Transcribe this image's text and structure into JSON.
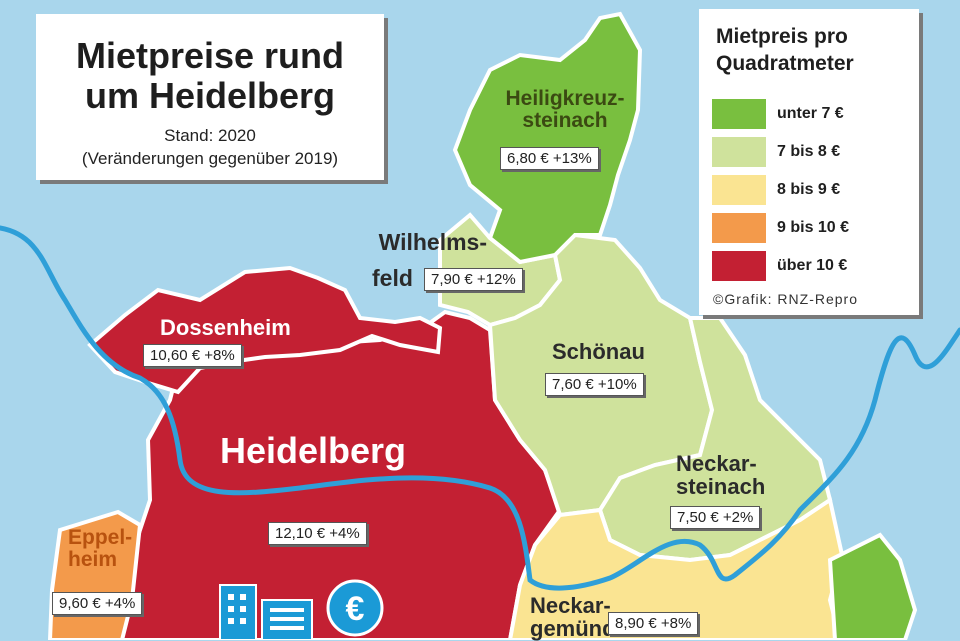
{
  "title": {
    "line1": "Mietpreise rund",
    "line2": "um Heidelberg",
    "stand": "Stand: 2020",
    "note": "(Veränderungen gegenüber 2019)"
  },
  "legend": {
    "title_line1": "Mietpreis pro",
    "title_line2": "Quadratmeter",
    "items": [
      {
        "label": "unter 7 €",
        "color": "#79bf3f"
      },
      {
        "label": "7 bis 8 €",
        "color": "#cfe29c"
      },
      {
        "label": "8 bis 9 €",
        "color": "#fae492"
      },
      {
        "label": "9 bis 10 €",
        "color": "#f39a4b"
      },
      {
        "label": "über 10 €",
        "color": "#c32033"
      }
    ],
    "credit": "©Grafik: RNZ-Repro"
  },
  "places": {
    "heiligkreuzsteinach": {
      "name_l1": "Heiligkreuz-",
      "name_l2": "steinach",
      "price": "6,80 € +13%"
    },
    "wilhelmsfeld": {
      "name_l1": "Wilhelms-",
      "name_l2": "feld",
      "price": "7,90 € +12%"
    },
    "dossenheim": {
      "name": "Dossenheim",
      "price": "10,60 € +8%"
    },
    "heidelberg": {
      "name": "Heidelberg",
      "price": "12,10 € +4%"
    },
    "schoenau": {
      "name": "Schönau",
      "price": "7,60 € +10%"
    },
    "neckarsteinach": {
      "name_l1": "Neckar-",
      "name_l2": "steinach",
      "price": "7,50 € +2%"
    },
    "eppelheim": {
      "name_l1": "Eppel-",
      "name_l2": "heim",
      "price": "9,60 € +4%"
    },
    "neckargemuend": {
      "name_l1": "Neckar-",
      "name_l2": "gemünd",
      "price": "8,90 € +8%"
    }
  },
  "icons": {
    "euro_symbol": "€",
    "buildings": "buildings-icon",
    "euro_coin": "euro-coin-icon"
  },
  "colors": {
    "water": "#a9d6ec",
    "river": "#2f9fd8",
    "border": "#ffffff"
  }
}
